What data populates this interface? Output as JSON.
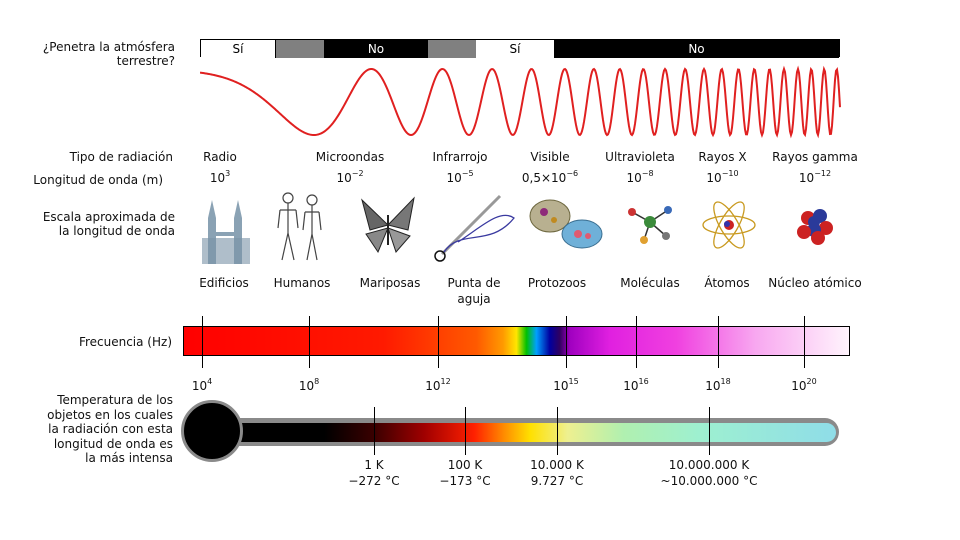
{
  "penetration": {
    "question_line1": "¿Penetra la atmósfera",
    "question_line2": "terrestre?",
    "segments": [
      {
        "label": "Sí",
        "color": "#ffffff",
        "text_color": "#000000"
      },
      {
        "label": "",
        "color": "#808080",
        "text_color": "#ffffff"
      },
      {
        "label": "No",
        "color": "#000000",
        "text_color": "#ffffff"
      },
      {
        "label": "",
        "color": "#808080",
        "text_color": "#ffffff"
      },
      {
        "label": "Sí",
        "color": "#ffffff",
        "text_color": "#000000"
      },
      {
        "label": "No",
        "color": "#000000",
        "text_color": "#ffffff"
      }
    ]
  },
  "radiation": {
    "type_label": "Tipo de radiación",
    "wavelength_label": "Longitud de onda (m)",
    "types": [
      {
        "name": "Radio",
        "base": "10",
        "exp": "3"
      },
      {
        "name": "Microondas",
        "base": "10",
        "exp": "−2"
      },
      {
        "name": "Infrarrojo",
        "base": "10",
        "exp": "−5"
      },
      {
        "name": "Visible",
        "base": "0,5×10",
        "exp": "−6"
      },
      {
        "name": "Ultravioleta",
        "base": "10",
        "exp": "−8"
      },
      {
        "name": "Rayos X",
        "base": "10",
        "exp": "−10"
      },
      {
        "name": "Rayos gamma",
        "base": "10",
        "exp": "−12"
      }
    ]
  },
  "scale": {
    "label_line1": "Escala aproximada de",
    "label_line2": "la longitud de onda",
    "items": [
      {
        "name": "Edificios",
        "icon": "buildings-icon"
      },
      {
        "name": "Humanos",
        "icon": "humans-icon"
      },
      {
        "name": "Mariposas",
        "icon": "butterfly-icon"
      },
      {
        "name": "Punta de aguja",
        "line1": "Punta de",
        "line2": "aguja",
        "icon": "needle-icon"
      },
      {
        "name": "Protozoos",
        "icon": "protozoa-icon"
      },
      {
        "name": "Moléculas",
        "icon": "molecule-icon"
      },
      {
        "name": "Átomos",
        "icon": "atom-icon"
      },
      {
        "name": "Núcleo atómico",
        "icon": "nucleus-icon"
      }
    ]
  },
  "frequency": {
    "label": "Frecuencia (Hz)",
    "ticks": [
      {
        "base": "10",
        "exp": "4"
      },
      {
        "base": "10",
        "exp": "8"
      },
      {
        "base": "10",
        "exp": "12"
      },
      {
        "base": "10",
        "exp": "15"
      },
      {
        "base": "10",
        "exp": "16"
      },
      {
        "base": "10",
        "exp": "18"
      },
      {
        "base": "10",
        "exp": "20"
      }
    ]
  },
  "temperature": {
    "label_lines": [
      "Temperatura de los",
      "objetos en los cuales",
      "la radiación con esta",
      "longitud de onda es",
      "la más intensa"
    ],
    "ticks": [
      {
        "kelvin": "1 K",
        "celsius": "−272 °C"
      },
      {
        "kelvin": "100 K",
        "celsius": "−173 °C"
      },
      {
        "kelvin": "10.000 K",
        "celsius": "9.727 °C"
      },
      {
        "kelvin": "10.000.000 K",
        "celsius": "~10.000.000 °C"
      }
    ]
  },
  "colors": {
    "wave": "#e02020",
    "thermometer_end": "#8fdde8"
  }
}
